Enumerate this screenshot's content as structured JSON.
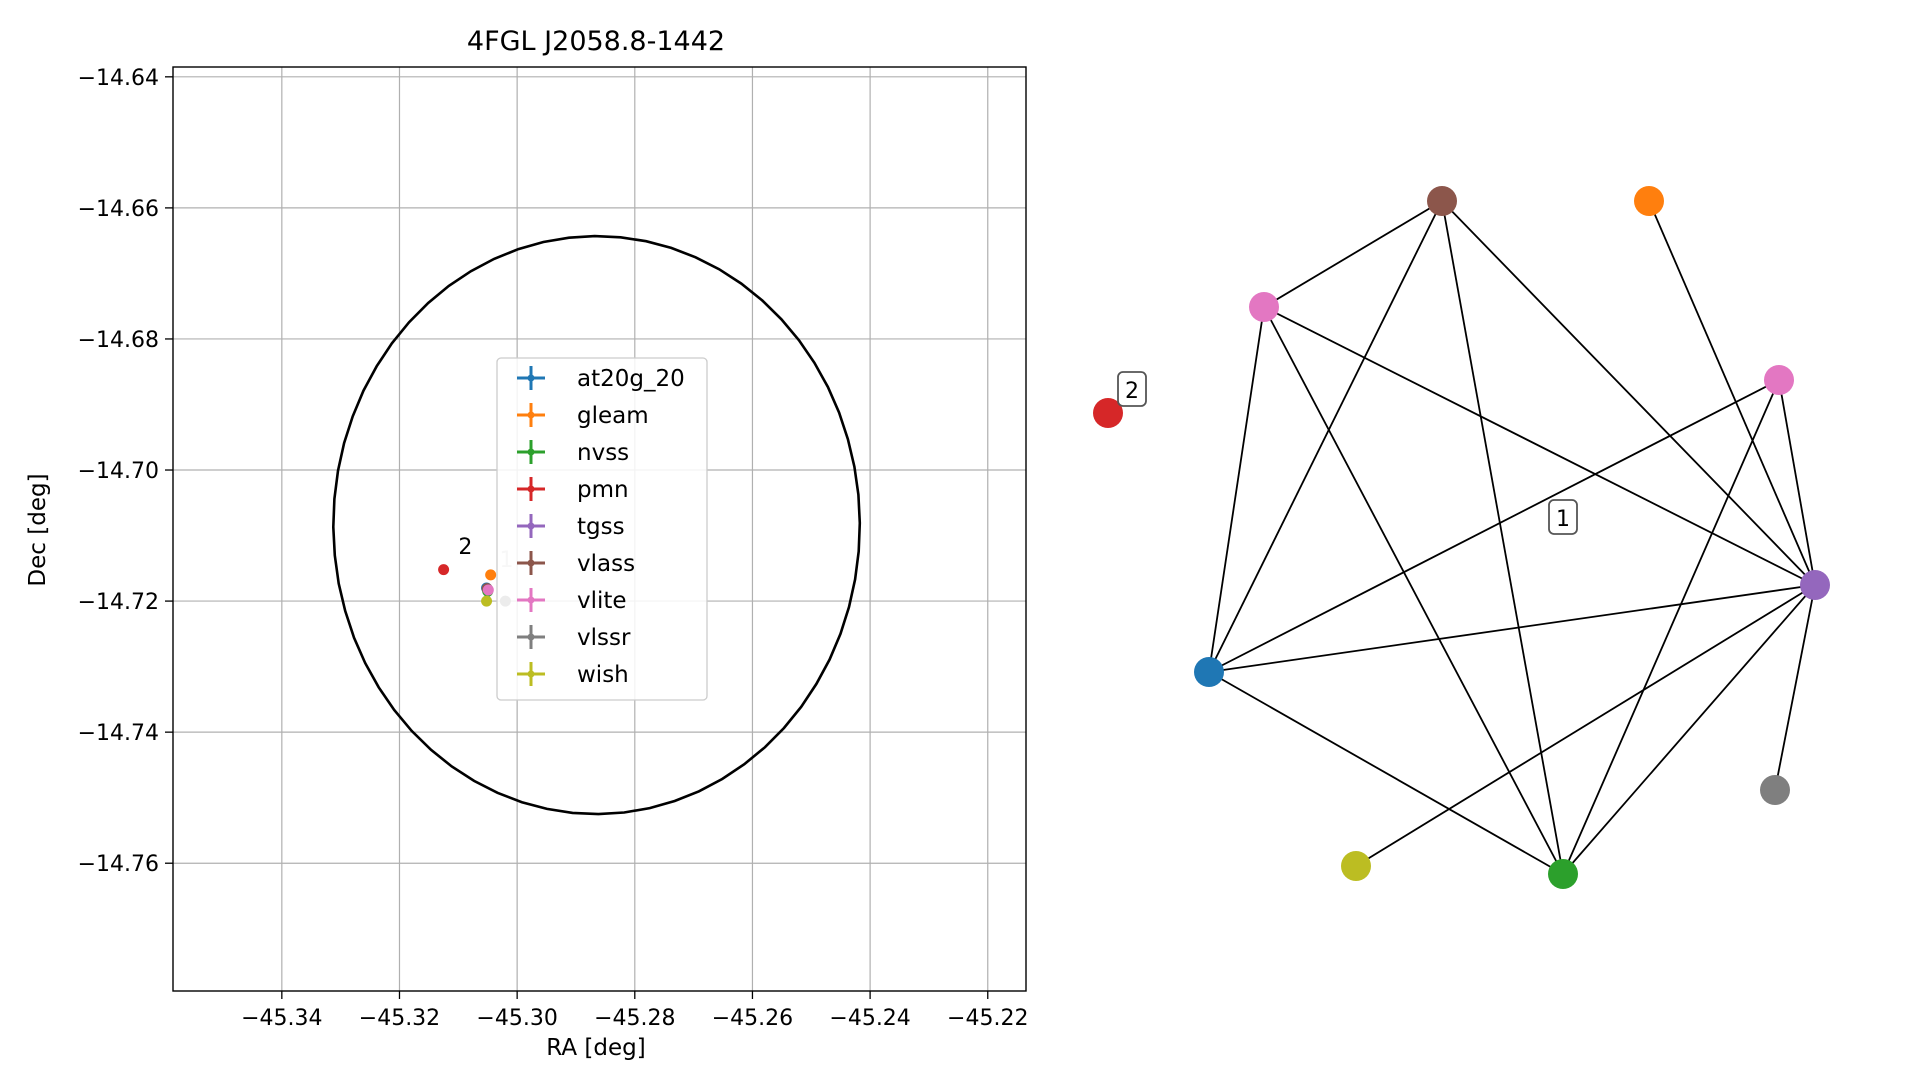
{
  "chart_data": [
    {
      "type": "scatter",
      "title": "4FGL J2058.8-1442",
      "xlabel": "RA [deg]",
      "ylabel": "Dec [deg]",
      "xlim": [
        -45.3585,
        -45.2135
      ],
      "ylim": [
        -14.7795,
        -14.6385
      ],
      "xticks": [
        -45.34,
        -45.32,
        -45.3,
        -45.28,
        -45.26,
        -45.24,
        -45.22
      ],
      "xtick_labels": [
        "−45.34",
        "−45.32",
        "−45.30",
        "−45.28",
        "−45.26",
        "−45.24",
        "−45.22"
      ],
      "yticks": [
        -14.64,
        -14.66,
        -14.68,
        -14.7,
        -14.72,
        -14.74,
        -14.76
      ],
      "ytick_labels": [
        "−14.64",
        "−14.66",
        "−14.68",
        "−14.70",
        "−14.72",
        "−14.74",
        "−14.76"
      ],
      "grid": true,
      "legend_position": "center",
      "ellipse": {
        "center": [
          -45.2865,
          -14.7084
        ],
        "width_deg": 0.0895,
        "height_deg": 0.0882,
        "angle_deg": 0.4,
        "color": "#000000"
      },
      "series": [
        {
          "name": "at20g_20",
          "color": "#1f77b4",
          "x": [
            -45.3052
          ],
          "y": [
            -14.718
          ]
        },
        {
          "name": "gleam",
          "color": "#ff7f0e",
          "x": [
            -45.3045
          ],
          "y": [
            -14.716
          ]
        },
        {
          "name": "nvss",
          "color": "#2ca02c",
          "x": [
            -45.305
          ],
          "y": [
            -14.7185
          ]
        },
        {
          "name": "pmn",
          "color": "#d62728",
          "x": [
            -45.3125
          ],
          "y": [
            -14.7152
          ]
        },
        {
          "name": "tgss",
          "color": "#9467bd",
          "x": [
            -45.305
          ],
          "y": [
            -14.7182
          ]
        },
        {
          "name": "vlass",
          "color": "#8c564b",
          "x": [
            -45.3051
          ],
          "y": [
            -14.7181
          ]
        },
        {
          "name": "vlite",
          "color": "#e377c2",
          "x": [
            -45.3049
          ],
          "y": [
            -14.7183
          ]
        },
        {
          "name": "vlssr",
          "color": "#7f7f7f",
          "x": [
            -45.302
          ],
          "y": [
            -14.72
          ]
        },
        {
          "name": "wish",
          "color": "#bcbd22",
          "x": [
            -45.3052
          ],
          "y": [
            -14.72
          ]
        }
      ],
      "cluster_labels": [
        {
          "text": "2",
          "x": -45.31,
          "y": -14.7128,
          "color": "#000000"
        },
        {
          "text": "1",
          "x": -45.303,
          "y": -14.7148,
          "color": "#c8c8c8"
        }
      ]
    },
    {
      "type": "network",
      "nodes": [
        {
          "id": "at20g_20",
          "color": "#1f77b4"
        },
        {
          "id": "gleam",
          "color": "#ff7f0e"
        },
        {
          "id": "nvss",
          "color": "#2ca02c"
        },
        {
          "id": "pmn",
          "color": "#d62728"
        },
        {
          "id": "tgss",
          "color": "#9467bd"
        },
        {
          "id": "vlass",
          "color": "#8c564b"
        },
        {
          "id": "vlite_a",
          "color": "#e377c2"
        },
        {
          "id": "vlite_b",
          "color": "#e377c2"
        },
        {
          "id": "vlssr",
          "color": "#7f7f7f"
        },
        {
          "id": "wish",
          "color": "#bcbd22"
        }
      ],
      "edges": [
        [
          "vlass",
          "vlite_a"
        ],
        [
          "vlass",
          "at20g_20"
        ],
        [
          "vlass",
          "nvss"
        ],
        [
          "vlass",
          "tgss"
        ],
        [
          "gleam",
          "tgss"
        ],
        [
          "vlite_a",
          "at20g_20"
        ],
        [
          "vlite_a",
          "tgss"
        ],
        [
          "vlite_a",
          "nvss"
        ],
        [
          "vlite_b",
          "at20g_20"
        ],
        [
          "vlite_b",
          "tgss"
        ],
        [
          "vlite_b",
          "nvss"
        ],
        [
          "at20g_20",
          "tgss"
        ],
        [
          "at20g_20",
          "nvss"
        ],
        [
          "nvss",
          "tgss"
        ],
        [
          "wish",
          "tgss"
        ],
        [
          "vlssr",
          "tgss"
        ]
      ],
      "cluster_labels": [
        "2",
        "1"
      ]
    }
  ]
}
